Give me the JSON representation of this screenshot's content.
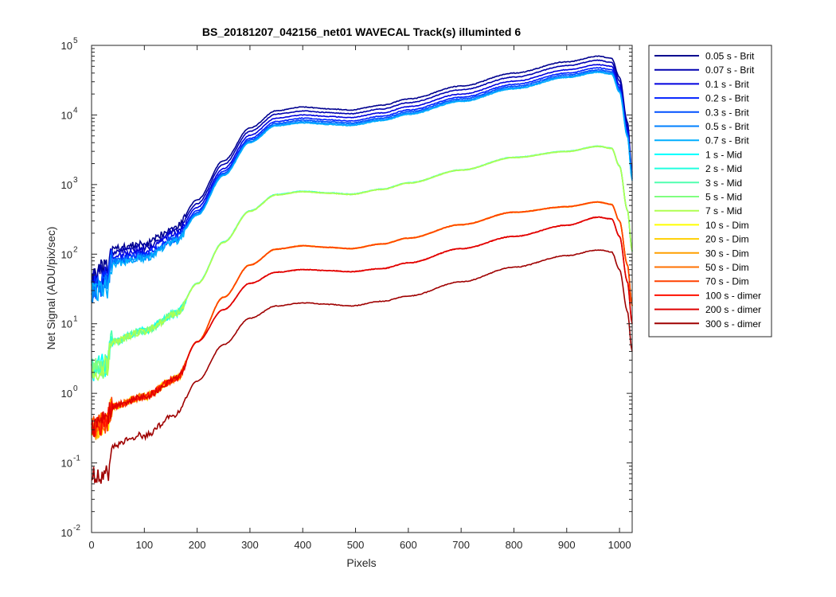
{
  "chart_data": {
    "type": "line",
    "title": "BS_20181207_042156_net01 WAVECAL  Track(s) illuminted 6",
    "xlabel": "Pixels",
    "ylabel": "Net Signal (ADU/pix/sec)",
    "xlim": [
      0,
      1024
    ],
    "ylim": [
      0.01,
      100000
    ],
    "yscale": "log",
    "xticks": [
      0,
      100,
      200,
      300,
      400,
      500,
      600,
      700,
      800,
      900,
      1000
    ],
    "yticks": [
      {
        "value": 0.01,
        "base": "10",
        "exp": "-2"
      },
      {
        "value": 0.1,
        "base": "10",
        "exp": "-1"
      },
      {
        "value": 1,
        "base": "10",
        "exp": "0"
      },
      {
        "value": 10,
        "base": "10",
        "exp": "1"
      },
      {
        "value": 100,
        "base": "10",
        "exp": "2"
      },
      {
        "value": 1000,
        "base": "10",
        "exp": "3"
      },
      {
        "value": 10000,
        "base": "10",
        "exp": "4"
      },
      {
        "value": 100000,
        "base": "10",
        "exp": "5"
      }
    ],
    "grid": false,
    "legend_position": "outside-right",
    "profile_x": [
      0,
      30,
      38,
      100,
      160,
      200,
      250,
      300,
      350,
      400,
      450,
      490,
      550,
      600,
      700,
      800,
      900,
      960,
      985,
      1000,
      1015,
      1024
    ],
    "series": [
      {
        "name": "0.05 s - Brit",
        "color": "#00008f",
        "values": [
          50,
          60,
          120,
          140,
          250,
          600,
          2200,
          6500,
          11500,
          13000,
          12200,
          11800,
          13800,
          17000,
          26000,
          40000,
          58000,
          70000,
          65000,
          35000,
          8000,
          1500
        ]
      },
      {
        "name": "0.07 s - Brit",
        "color": "#0000b0",
        "values": [
          43,
          52,
          108,
          125,
          220,
          530,
          1950,
          5800,
          10300,
          11400,
          10800,
          10400,
          12200,
          15000,
          23000,
          35000,
          51000,
          61000,
          57000,
          31000,
          7000,
          1400
        ]
      },
      {
        "name": "0.1 s - Brit",
        "color": "#0000df",
        "values": [
          37,
          45,
          95,
          110,
          195,
          470,
          1700,
          5100,
          9000,
          10000,
          9500,
          9200,
          10700,
          13200,
          20000,
          30500,
          44500,
          53000,
          50000,
          27000,
          6200,
          1300
        ]
      },
      {
        "name": "0.2 s - Brit",
        "color": "#0020ff",
        "values": [
          33,
          40,
          85,
          100,
          175,
          420,
          1550,
          4600,
          8100,
          9000,
          8500,
          8200,
          9600,
          11800,
          18000,
          27500,
          40000,
          47500,
          45000,
          24500,
          5600,
          1250
        ]
      },
      {
        "name": "0.3 s - Brit",
        "color": "#0050ff",
        "values": [
          31,
          38,
          80,
          95,
          165,
          395,
          1450,
          4350,
          7600,
          8400,
          8000,
          7700,
          9000,
          11100,
          17000,
          25800,
          37600,
          44500,
          42000,
          23000,
          5300,
          1200
        ]
      },
      {
        "name": "0.5 s - Brit",
        "color": "#0080ff",
        "values": [
          29,
          36,
          76,
          90,
          158,
          378,
          1390,
          4150,
          7250,
          8000,
          7600,
          7350,
          8600,
          10600,
          16200,
          24600,
          35800,
          42500,
          40000,
          22000,
          5100,
          1180
        ]
      },
      {
        "name": "0.7 s - Brit",
        "color": "#00aeff",
        "values": [
          28,
          34,
          73,
          86,
          152,
          363,
          1340,
          4000,
          7000,
          7700,
          7300,
          7050,
          8250,
          10200,
          15600,
          23700,
          34500,
          41000,
          38500,
          21200,
          4900,
          1150
        ]
      },
      {
        "name": "1 s - Mid",
        "color": "#00ffff",
        "values": [
          2.2,
          2.6,
          5.5,
          8,
          14,
          38,
          150,
          420,
          720,
          800,
          760,
          730,
          860,
          1060,
          1620,
          2460,
          3000,
          3550,
          3330,
          1850,
          430,
          110
        ]
      },
      {
        "name": "2 s - Mid",
        "color": "#20ffdf",
        "values": [
          2.2,
          2.6,
          5.5,
          8,
          14,
          38,
          149,
          418,
          717,
          797,
          757,
          727,
          857,
          1057,
          1617,
          2455,
          2995,
          3545,
          3325,
          1848,
          429,
          110
        ]
      },
      {
        "name": "3 s - Mid",
        "color": "#50ffaf",
        "values": [
          2.1,
          2.5,
          5.4,
          7.9,
          13.9,
          37.6,
          148,
          416,
          714,
          794,
          754,
          724,
          854,
          1054,
          1614,
          2450,
          2990,
          3540,
          3320,
          1846,
          428,
          110
        ]
      },
      {
        "name": "5 s - Mid",
        "color": "#80ff80",
        "values": [
          2.1,
          2.5,
          5.4,
          7.9,
          13.9,
          37.6,
          148,
          415,
          712,
          792,
          752,
          722,
          852,
          1052,
          1612,
          2447,
          2987,
          3537,
          3317,
          1845,
          428,
          110
        ]
      },
      {
        "name": "7 s - Mid",
        "color": "#afff50",
        "values": [
          2.1,
          2.5,
          5.4,
          7.8,
          13.8,
          37.4,
          147,
          414,
          710,
          790,
          750,
          720,
          850,
          1050,
          1610,
          2445,
          2985,
          3535,
          3315,
          1844,
          427,
          110
        ]
      },
      {
        "name": "10 s - Dim",
        "color": "#ffff00",
        "values": [
          0.3,
          0.4,
          0.65,
          0.9,
          1.6,
          5.5,
          24,
          70,
          118,
          132,
          125,
          120,
          140,
          170,
          265,
          400,
          480,
          560,
          520,
          300,
          70,
          18
        ]
      },
      {
        "name": "20 s - Dim",
        "color": "#ffcf00",
        "values": [
          0.3,
          0.4,
          0.65,
          0.9,
          1.6,
          5.5,
          24,
          70,
          118,
          132,
          125,
          120,
          140,
          170,
          265,
          400,
          480,
          560,
          520,
          300,
          70,
          18
        ]
      },
      {
        "name": "30 s - Dim",
        "color": "#ff9f00",
        "values": [
          0.3,
          0.4,
          0.65,
          0.9,
          1.6,
          5.5,
          24,
          70,
          118,
          132,
          125,
          120,
          140,
          170,
          265,
          400,
          480,
          560,
          520,
          300,
          70,
          18
        ]
      },
      {
        "name": "50 s - Dim",
        "color": "#ff7000",
        "values": [
          0.3,
          0.4,
          0.65,
          0.9,
          1.6,
          5.5,
          24,
          70,
          118,
          132,
          125,
          120,
          140,
          170,
          265,
          400,
          480,
          560,
          520,
          300,
          70,
          18
        ]
      },
      {
        "name": "70 s - Dim",
        "color": "#ff4000",
        "values": [
          0.3,
          0.4,
          0.65,
          0.9,
          1.6,
          5.5,
          24,
          70,
          118,
          132,
          125,
          120,
          140,
          170,
          265,
          400,
          480,
          560,
          520,
          300,
          70,
          18
        ]
      },
      {
        "name": "100 s - dimer",
        "color": "#ff1000",
        "values": [
          0.3,
          0.4,
          0.65,
          0.9,
          1.6,
          5.5,
          16,
          38,
          55,
          60,
          58,
          56,
          62,
          75,
          120,
          180,
          260,
          340,
          320,
          180,
          40,
          10
        ]
      },
      {
        "name": "200 s - dimer",
        "color": "#df0000",
        "values": [
          0.3,
          0.4,
          0.65,
          0.9,
          1.6,
          5.5,
          16,
          38,
          55,
          60,
          58,
          56,
          62,
          75,
          120,
          180,
          260,
          340,
          320,
          180,
          40,
          10
        ]
      },
      {
        "name": "300 s - dimer",
        "color": "#9f0000",
        "values": [
          0.07,
          0.07,
          0.18,
          0.25,
          0.5,
          1.5,
          5,
          12,
          18,
          20,
          19,
          18,
          21,
          25,
          40,
          65,
          95,
          115,
          108,
          60,
          15,
          4
        ]
      }
    ]
  }
}
